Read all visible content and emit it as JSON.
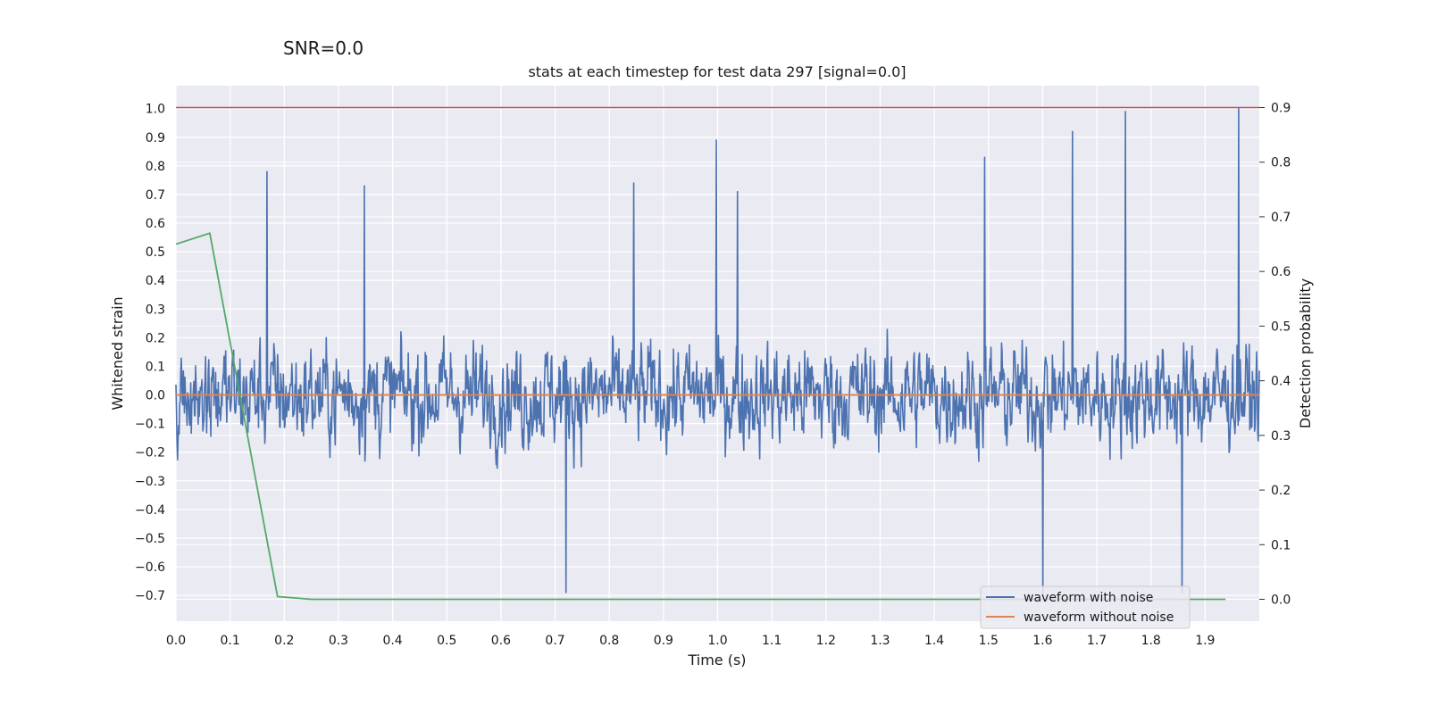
{
  "chart_data": {
    "type": "line",
    "suptitle": "SNR=0.0",
    "title": "stats at each timestep for test data 297 [signal=0.0]",
    "xlabel": "Time (s)",
    "ylabel": "Whitened strain",
    "ylabel_right": "Detection probability",
    "xlim": [
      0.0,
      2.0
    ],
    "ylim": [
      -0.79,
      1.08
    ],
    "ylim_right": [
      -0.04,
      0.94
    ],
    "x_ticks": [
      "0.0",
      "0.1",
      "0.2",
      "0.3",
      "0.4",
      "0.5",
      "0.6",
      "0.7",
      "0.8",
      "0.9",
      "1.0",
      "1.1",
      "1.2",
      "1.3",
      "1.4",
      "1.5",
      "1.6",
      "1.7",
      "1.8",
      "1.9"
    ],
    "y_ticks": [
      "1.0",
      "0.9",
      "0.8",
      "0.7",
      "0.6",
      "0.5",
      "0.4",
      "0.3",
      "0.2",
      "0.1",
      "0.0",
      "−0.1",
      "−0.2",
      "−0.3",
      "−0.4",
      "−0.5",
      "−0.6",
      "−0.7"
    ],
    "y_ticks_right": [
      "0.9",
      "0.8",
      "0.7",
      "0.6",
      "0.5",
      "0.4",
      "0.3",
      "0.2",
      "0.1",
      "0.0"
    ],
    "threshold": {
      "value": 0.9,
      "axis": "right",
      "color": "#c44e52"
    },
    "series": [
      {
        "name": "waveform with noise",
        "color": "#4c72b0",
        "axis": "left",
        "note": "whitened noise, ~2048 samples over 2 s, amplitude roughly within [-0.7, 1.0]",
        "peaks": [
          {
            "x": 0.998,
            "y": 0.89
          },
          {
            "x": 1.753,
            "y": 0.99
          },
          {
            "x": 1.962,
            "y": 1.0
          },
          {
            "x": 1.655,
            "y": 0.92
          },
          {
            "x": 1.493,
            "y": 0.83
          },
          {
            "x": 0.168,
            "y": 0.78
          },
          {
            "x": 0.845,
            "y": 0.74
          },
          {
            "x": 0.348,
            "y": 0.73
          },
          {
            "x": 1.037,
            "y": 0.71
          },
          {
            "x": 1.6,
            "y": -0.7
          },
          {
            "x": 0.72,
            "y": -0.69
          },
          {
            "x": 1.857,
            "y": -0.69
          }
        ]
      },
      {
        "name": "waveform without noise",
        "color": "#dd8452",
        "axis": "left",
        "x": [
          0.0,
          2.0
        ],
        "y": [
          0.0,
          0.0
        ]
      },
      {
        "name": "detection probability",
        "color": "#55a868",
        "axis": "right",
        "x": [
          0.0,
          0.0625,
          0.1875,
          0.25,
          1.9375
        ],
        "y": [
          0.65,
          0.67,
          0.005,
          0.0,
          0.0
        ]
      }
    ],
    "legend": {
      "position": "lower-right",
      "entries": [
        "waveform with noise",
        "waveform without noise"
      ]
    },
    "grid": true
  }
}
